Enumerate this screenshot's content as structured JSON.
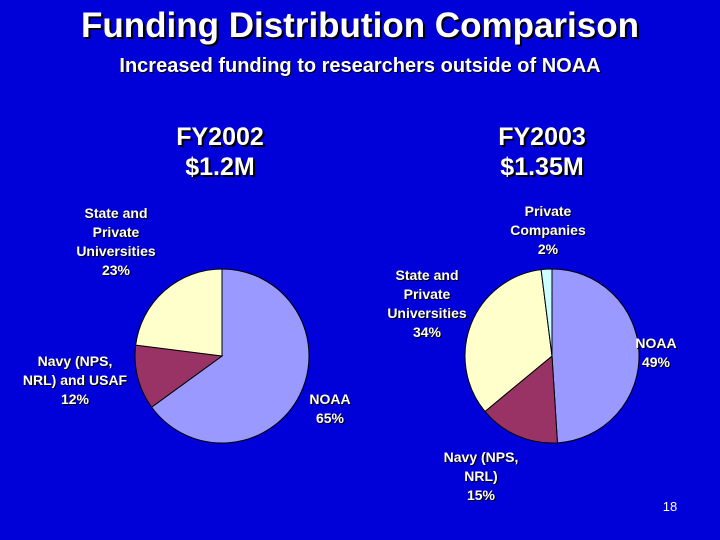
{
  "title": "Funding Distribution Comparison",
  "subtitle": "Increased funding to researchers outside of NOAA",
  "page_number": "18",
  "chart_data": [
    {
      "type": "pie",
      "title": "FY2002",
      "subtitle": "$1.2M",
      "slices": [
        {
          "label_lines": [
            "NOAA"
          ],
          "value": 65,
          "value_label": "65%",
          "color": "#9999ff"
        },
        {
          "label_lines": [
            "Navy (NPS,",
            "NRL) and USAF"
          ],
          "value": 12,
          "value_label": "12%",
          "color": "#993366"
        },
        {
          "label_lines": [
            "State and",
            "Private",
            "Universities"
          ],
          "value": 23,
          "value_label": "23%",
          "color": "#ffffcc"
        }
      ]
    },
    {
      "type": "pie",
      "title": "FY2003",
      "subtitle": "$1.35M",
      "slices": [
        {
          "label_lines": [
            "NOAA"
          ],
          "value": 49,
          "value_label": "49%",
          "color": "#9999ff"
        },
        {
          "label_lines": [
            "Navy (NPS,",
            "NRL)"
          ],
          "value": 15,
          "value_label": "15%",
          "color": "#993366"
        },
        {
          "label_lines": [
            "State and",
            "Private",
            "Universities"
          ],
          "value": 34,
          "value_label": "34%",
          "color": "#ffffcc"
        },
        {
          "label_lines": [
            "Private",
            "Companies"
          ],
          "value": 2,
          "value_label": "2%",
          "color": "#ccffff"
        }
      ]
    }
  ]
}
